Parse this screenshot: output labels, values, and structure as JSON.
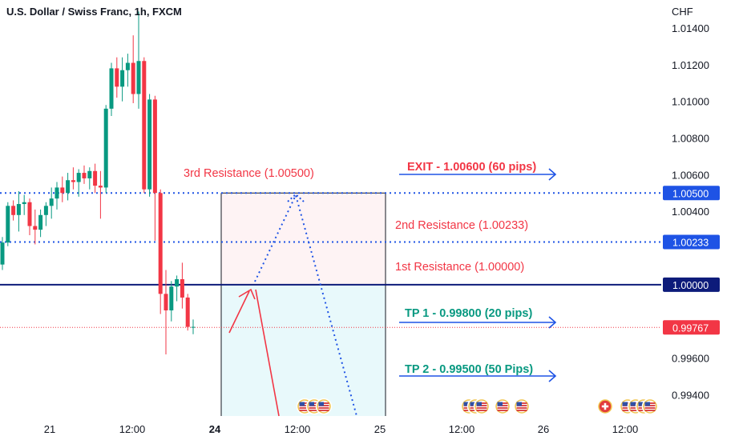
{
  "chart_data": {
    "type": "candlestick",
    "title": "U.S. Dollar / Swiss Franc, 1h, FXCM",
    "currency_label": "CHF",
    "y_ticks": [
      {
        "value": 1.014,
        "label": "1.01400"
      },
      {
        "value": 1.012,
        "label": "1.01200"
      },
      {
        "value": 1.01,
        "label": "1.01000"
      },
      {
        "value": 1.008,
        "label": "1.00800"
      },
      {
        "value": 1.006,
        "label": "1.00600"
      },
      {
        "value": 1.004,
        "label": "1.00400"
      },
      {
        "value": 0.996,
        "label": "0.99600"
      },
      {
        "value": 0.994,
        "label": "0.99400"
      }
    ],
    "x_ticks": [
      {
        "label": "21",
        "bold": false
      },
      {
        "label": "12:00",
        "bold": false
      },
      {
        "label": "24",
        "bold": true
      },
      {
        "label": "12:00",
        "bold": false
      },
      {
        "label": "25",
        "bold": false
      },
      {
        "label": "12:00",
        "bold": false
      },
      {
        "label": "26",
        "bold": false
      },
      {
        "label": "12:00",
        "bold": false
      }
    ],
    "price_badges": [
      {
        "value": 1.005,
        "label": "1.00500",
        "color": "#1e53e5"
      },
      {
        "value": 1.00233,
        "label": "1.00233",
        "color": "#1e53e5"
      },
      {
        "value": 1.0,
        "label": "1.00000",
        "color": "#0d1b7a"
      },
      {
        "value": 0.99767,
        "label": "0.99767",
        "color": "#f23645"
      }
    ],
    "levels": [
      {
        "label": "3rd Resistance (1.00500)",
        "value": 1.005,
        "color": "#f23645"
      },
      {
        "label": "2nd Resistance (1.00233)",
        "value": 1.00233,
        "color": "#f23645"
      },
      {
        "label": "1st Resistance (1.00000)",
        "value": 1.0,
        "color": "#f23645"
      }
    ],
    "targets": [
      {
        "label": "EXIT - 1.00600 (60 pips)",
        "value": 1.006,
        "color": "#f23645"
      },
      {
        "label": "TP 1 - 0.99800 (20 pips)",
        "value": 0.998,
        "color": "#089981"
      },
      {
        "label": "TP 2 - 0.99500 (50 Pips)",
        "value": 0.995,
        "color": "#089981"
      }
    ],
    "candles": [
      {
        "o": 1.0011,
        "h": 1.0026,
        "l": 1.0008,
        "c": 1.0023
      },
      {
        "o": 1.0023,
        "h": 1.0045,
        "l": 1.0021,
        "c": 1.0043
      },
      {
        "o": 1.0043,
        "h": 1.0046,
        "l": 1.0035,
        "c": 1.0038
      },
      {
        "o": 1.0038,
        "h": 1.0051,
        "l": 1.0029,
        "c": 1.0044
      },
      {
        "o": 1.0044,
        "h": 1.0049,
        "l": 1.0038,
        "c": 1.0045
      },
      {
        "o": 1.0045,
        "h": 1.0047,
        "l": 1.0027,
        "c": 1.0032
      },
      {
        "o": 1.0032,
        "h": 1.0041,
        "l": 1.0022,
        "c": 1.003
      },
      {
        "o": 1.003,
        "h": 1.0041,
        "l": 1.0026,
        "c": 1.0038
      },
      {
        "o": 1.0038,
        "h": 1.0045,
        "l": 1.0032,
        "c": 1.0043
      },
      {
        "o": 1.0043,
        "h": 1.0053,
        "l": 1.0036,
        "c": 1.0047
      },
      {
        "o": 1.0047,
        "h": 1.0056,
        "l": 1.0041,
        "c": 1.0053
      },
      {
        "o": 1.0053,
        "h": 1.0059,
        "l": 1.0045,
        "c": 1.005
      },
      {
        "o": 1.005,
        "h": 1.0061,
        "l": 1.0046,
        "c": 1.0057
      },
      {
        "o": 1.0057,
        "h": 1.0064,
        "l": 1.0052,
        "c": 1.0056
      },
      {
        "o": 1.0056,
        "h": 1.0063,
        "l": 1.0048,
        "c": 1.0061
      },
      {
        "o": 1.0061,
        "h": 1.0065,
        "l": 1.0055,
        "c": 1.0058
      },
      {
        "o": 1.0058,
        "h": 1.0064,
        "l": 1.0052,
        "c": 1.0062
      },
      {
        "o": 1.0062,
        "h": 1.0066,
        "l": 1.005,
        "c": 1.0054
      },
      {
        "o": 1.0054,
        "h": 1.0062,
        "l": 1.0036,
        "c": 1.0053
      },
      {
        "o": 1.0053,
        "h": 1.0098,
        "l": 1.005,
        "c": 1.0096
      },
      {
        "o": 1.0096,
        "h": 1.0121,
        "l": 1.0092,
        "c": 1.0118
      },
      {
        "o": 1.0118,
        "h": 1.0124,
        "l": 1.0102,
        "c": 1.0108
      },
      {
        "o": 1.0108,
        "h": 1.0124,
        "l": 1.01,
        "c": 1.0117
      },
      {
        "o": 1.0117,
        "h": 1.0126,
        "l": 1.0108,
        "c": 1.0121
      },
      {
        "o": 1.0121,
        "h": 1.0136,
        "l": 1.0099,
        "c": 1.0104
      },
      {
        "o": 1.0104,
        "h": 1.0149,
        "l": 1.0096,
        "c": 1.0122
      },
      {
        "o": 1.0122,
        "h": 1.0124,
        "l": 1.005,
        "c": 1.0052
      },
      {
        "o": 1.0052,
        "h": 1.0104,
        "l": 1.0048,
        "c": 1.0101
      },
      {
        "o": 1.0101,
        "h": 1.0103,
        "l": 1.0024,
        "c": 1.005
      },
      {
        "o": 1.005,
        "h": 1.0052,
        "l": 0.9984,
        "c": 0.9995
      },
      {
        "o": 0.9995,
        "h": 1.0008,
        "l": 0.9962,
        "c": 0.9986
      },
      {
        "o": 0.9986,
        "h": 1.0002,
        "l": 0.998,
        "c": 0.9999
      },
      {
        "o": 0.9999,
        "h": 1.0005,
        "l": 0.9991,
        "c": 1.0003
      },
      {
        "o": 1.0003,
        "h": 1.0012,
        "l": 0.9987,
        "c": 0.9993
      },
      {
        "o": 0.9993,
        "h": 0.9995,
        "l": 0.9975,
        "c": 0.9977
      },
      {
        "o": 0.9977,
        "h": 0.9981,
        "l": 0.9973,
        "c": 0.9977
      }
    ]
  }
}
